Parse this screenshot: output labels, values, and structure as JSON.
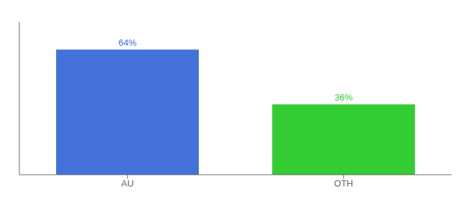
{
  "chart_data": {
    "type": "bar",
    "categories": [
      "AU",
      "OTH"
    ],
    "values": [
      64,
      36
    ],
    "value_labels": [
      "64%",
      "36%"
    ],
    "colors": [
      "#4472db",
      "#33cc33"
    ],
    "ylim": [
      0,
      78
    ],
    "data_labels": true,
    "tick_labels": "x",
    "grid": false
  }
}
